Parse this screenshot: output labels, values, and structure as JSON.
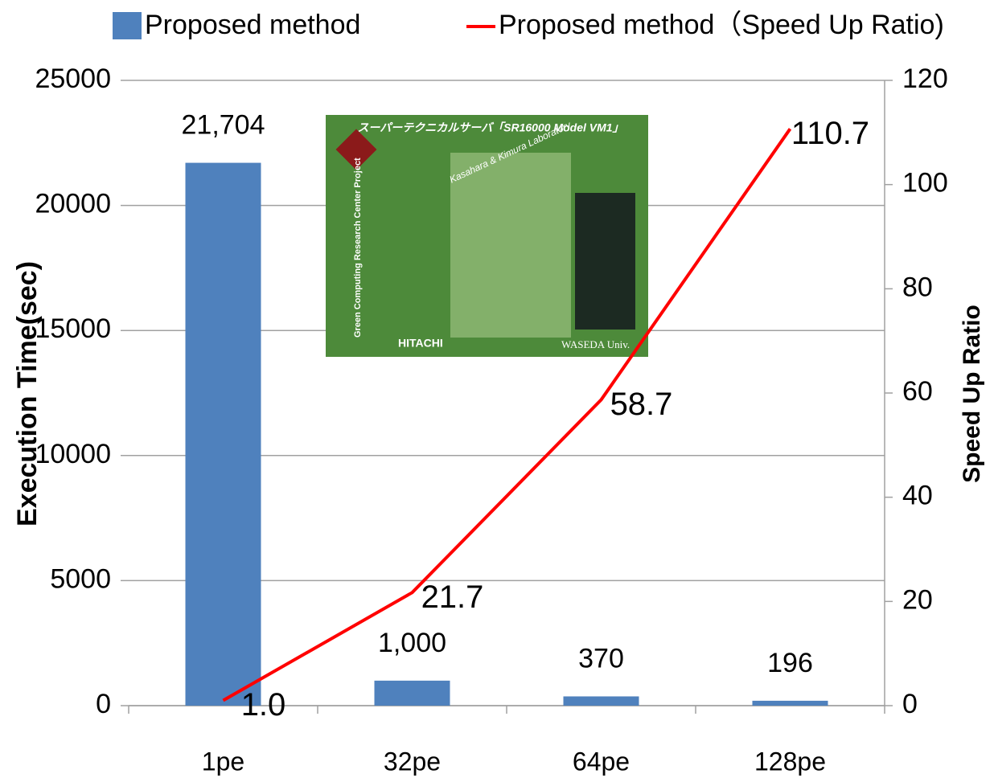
{
  "chart_data": {
    "type": "bar",
    "categories": [
      "1pe",
      "32pe",
      "64pe",
      "128pe"
    ],
    "series": [
      {
        "name": "Proposed method",
        "type": "bar",
        "color": "#4f81bd",
        "values": [
          21704,
          1000,
          370,
          196
        ],
        "value_labels": [
          "21,704",
          "1,000",
          "370",
          "196"
        ]
      },
      {
        "name": "Proposed method（Speed Up Ratio)",
        "type": "line",
        "axis": "y2",
        "color": "#ff0000",
        "values": [
          1.0,
          21.7,
          58.7,
          110.7
        ],
        "value_labels": [
          "1.0",
          "21.7",
          "58.7",
          "110.7"
        ]
      }
    ],
    "ylabel": "Execution Time(sec)",
    "y2label": "Speed Up Ratio",
    "ylim": [
      0,
      25000
    ],
    "yticks": [
      0,
      5000,
      10000,
      15000,
      20000,
      25000
    ],
    "y2lim": [
      0,
      120
    ],
    "y2ticks": [
      0,
      20,
      40,
      60,
      80,
      100,
      120
    ],
    "grid": true,
    "legend": "top"
  },
  "inset": {
    "title": "スーパーテクニカルサーバ「SR16000 Model VM1」",
    "lab": "Kasahara & Kimura Laboratory",
    "project": "Green Computing Research Center Project",
    "maker": "HITACHI",
    "univ": "WASEDA Univ."
  }
}
